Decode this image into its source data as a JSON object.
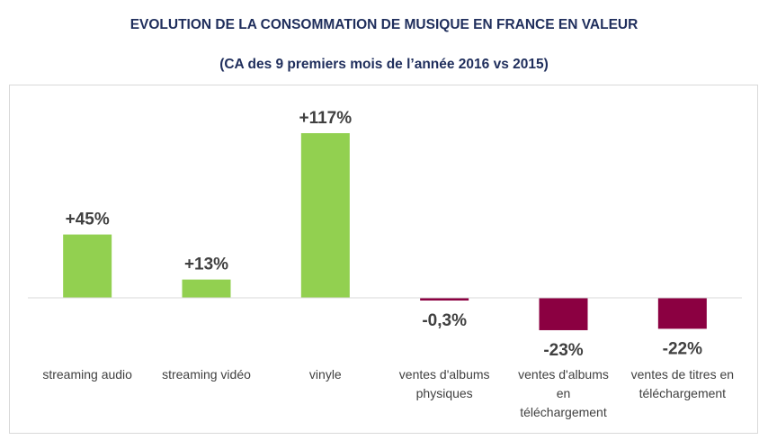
{
  "header": {
    "title": "EVOLUTION DE LA CONSOMMATION DE MUSIQUE EN FRANCE EN VALEUR",
    "subtitle": "(CA des 9 premiers mois de l’année 2016 vs 2015)"
  },
  "chart_data": {
    "type": "bar",
    "title": "EVOLUTION DE LA CONSOMMATION DE MUSIQUE EN FRANCE EN VALEUR",
    "subtitle": "(CA des 9 premiers mois de l’année 2016 vs 2015)",
    "categories": [
      [
        "streaming audio"
      ],
      [
        "streaming vidéo"
      ],
      [
        "vinyle"
      ],
      [
        "ventes d'albums",
        "physiques"
      ],
      [
        "ventes d'albums",
        "en",
        "téléchargement"
      ],
      [
        "ventes de titres en",
        "téléchargement"
      ]
    ],
    "values": [
      45,
      13,
      117,
      -0.3,
      -23,
      -22
    ],
    "data_labels": [
      "+45%",
      "+13%",
      "+117%",
      "-0,3%",
      "-23%",
      "-22%"
    ],
    "unit": "%",
    "grid": false,
    "legend": "none",
    "colors": {
      "positive": "#92d050",
      "negative": "#8b0041",
      "axis": "#d9d9d9",
      "label": "#404040"
    }
  }
}
